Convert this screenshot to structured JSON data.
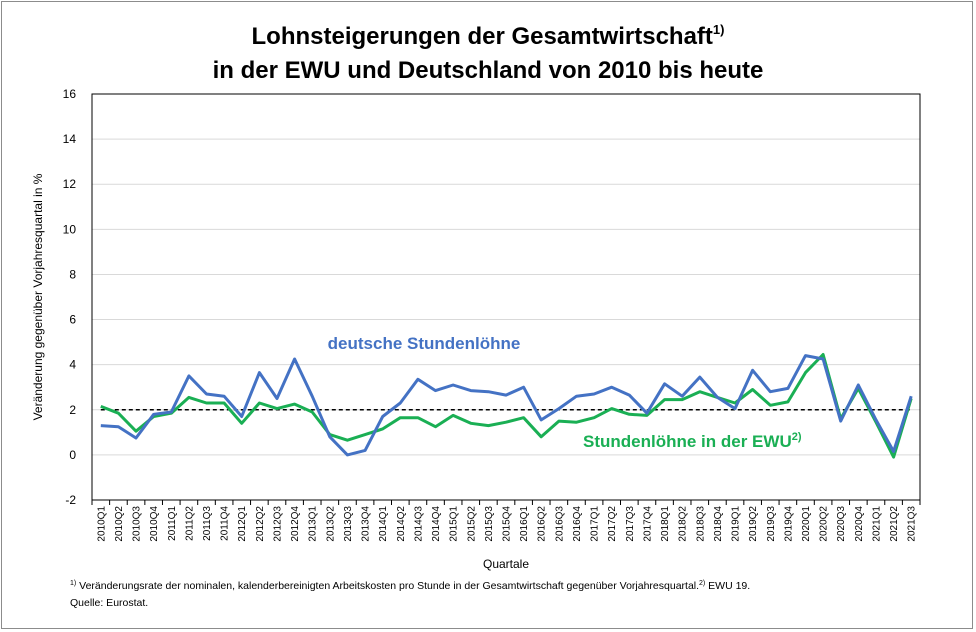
{
  "title": {
    "line1": "Lohnsteigerungen der Gesamtwirtschaft",
    "line1_sup": "1)",
    "line2": "in der EWU und Deutschland von 2010 bis heute"
  },
  "footnote": {
    "sup1": "1)",
    "text1": " Veränderungsrate der nominalen, kalenderbereinigten Arbeitskosten pro Stunde in der Gesamtwirtschaft gegenüber Vorjahresquartal.",
    "sup2": "2)",
    "text2": " EWU 19.",
    "source": "Quelle: Eurostat."
  },
  "chart_data": {
    "type": "line",
    "title": "Lohnsteigerungen der Gesamtwirtschaft in der EWU und Deutschland von 2010 bis heute",
    "xlabel": "Quartale",
    "ylabel": "Veränderung gegenüber Vorjahresquartal in %",
    "ylim": [
      -2,
      16
    ],
    "yticks": [
      -2,
      0,
      2,
      4,
      6,
      8,
      10,
      12,
      14,
      16
    ],
    "grid": true,
    "categories": [
      "2010Q1",
      "2010Q2",
      "2010Q3",
      "2010Q4",
      "2011Q1",
      "2011Q2",
      "2011Q3",
      "2011Q4",
      "2012Q1",
      "2012Q2",
      "2012Q3",
      "2012Q4",
      "2013Q1",
      "2013Q2",
      "2013Q3",
      "2013Q4",
      "2014Q1",
      "2014Q2",
      "2014Q3",
      "2014Q4",
      "2015Q1",
      "2015Q2",
      "2015Q3",
      "2015Q4",
      "2016Q1",
      "2016Q2",
      "2016Q3",
      "2016Q4",
      "2017Q1",
      "2017Q2",
      "2017Q3",
      "2017Q4",
      "2018Q1",
      "2018Q2",
      "2018Q3",
      "2018Q4",
      "2019Q1",
      "2019Q2",
      "2019Q3",
      "2019Q4",
      "2020Q1",
      "2020Q2",
      "2020Q3",
      "2020Q4",
      "2021Q1",
      "2021Q2",
      "2021Q3"
    ],
    "series": [
      {
        "name": "deutsche Stundenlöhne",
        "color": "#4472c4",
        "values": [
          1.3,
          1.25,
          0.75,
          1.8,
          1.9,
          3.5,
          2.7,
          2.6,
          1.7,
          3.65,
          2.5,
          4.25,
          2.6,
          0.8,
          0.0,
          0.2,
          1.7,
          2.3,
          3.35,
          2.85,
          3.1,
          2.85,
          2.8,
          2.65,
          3.0,
          1.55,
          2.05,
          2.6,
          2.7,
          3.0,
          2.65,
          1.85,
          3.15,
          2.6,
          3.45,
          2.55,
          2.05,
          3.75,
          2.8,
          2.95,
          4.4,
          4.25,
          1.5,
          3.1,
          1.55,
          0.15,
          2.6
        ]
      },
      {
        "name": "Stundenlöhne  in der EWU",
        "name_sup": "2)",
        "color": "#1aaf54",
        "values": [
          2.15,
          1.85,
          1.05,
          1.7,
          1.85,
          2.55,
          2.3,
          2.3,
          1.4,
          2.3,
          2.05,
          2.25,
          1.9,
          0.9,
          0.65,
          0.9,
          1.15,
          1.65,
          1.65,
          1.25,
          1.75,
          1.4,
          1.3,
          1.45,
          1.65,
          0.8,
          1.5,
          1.45,
          1.65,
          2.05,
          1.8,
          1.75,
          2.45,
          2.45,
          2.8,
          2.55,
          2.3,
          2.9,
          2.2,
          2.35,
          3.65,
          4.45,
          1.6,
          2.95,
          1.45,
          -0.1,
          2.5
        ]
      }
    ],
    "reference_line": {
      "y": 2,
      "style": "dashed",
      "color": "#000000"
    }
  }
}
